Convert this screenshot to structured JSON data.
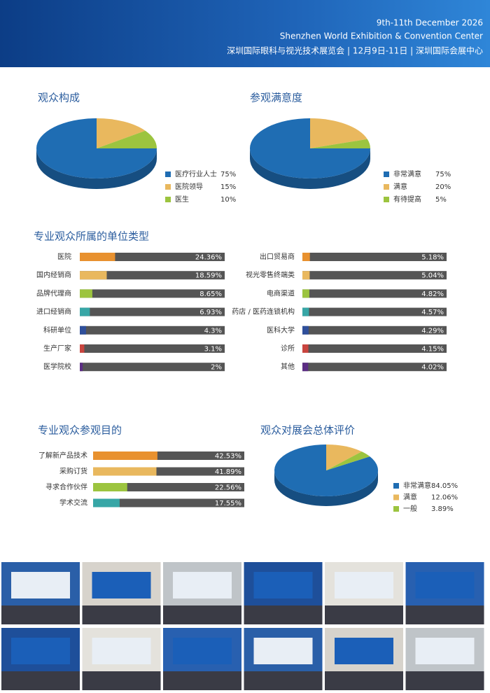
{
  "header": {
    "line1": "9th-11th December 2026",
    "line2": "Shenzhen World Exhibition & Convention Center",
    "line3": "深圳国际眼科与视光技术展览会 | 12月9日-11日 | 深圳国际会展中心"
  },
  "chart_data": [
    {
      "type": "pie",
      "title": "观众构成",
      "categories": [
        "医疗行业人士",
        "医院领导",
        "医生"
      ],
      "values": [
        75,
        15,
        10
      ],
      "value_labels": [
        "75%",
        "15%",
        "10%"
      ],
      "colors": [
        "#1f6db3",
        "#e9b85e",
        "#9cc43f"
      ]
    },
    {
      "type": "pie",
      "title": "参观满意度",
      "categories": [
        "非常满意",
        "满意",
        "有待提高"
      ],
      "values": [
        75,
        20,
        5
      ],
      "value_labels": [
        "75%",
        "20%",
        "5%"
      ],
      "colors": [
        "#1f6db3",
        "#e9b85e",
        "#9cc43f"
      ]
    },
    {
      "type": "bar",
      "title": "专业观众所属的单位类型",
      "categories": [
        "医院",
        "国内经销商",
        "品牌代理商",
        "进口经销商",
        "科研单位",
        "生产厂家",
        "医学院校",
        "出口贸易商",
        "视光零售终端类",
        "电商渠道",
        "药店 / 医药连锁机构",
        "医科大学",
        "诊所",
        "其他"
      ],
      "values": [
        24.36,
        18.59,
        8.65,
        6.93,
        4.3,
        3.1,
        2,
        5.18,
        5.04,
        4.82,
        4.57,
        4.29,
        4.15,
        4.02
      ],
      "value_labels": [
        "24.36%",
        "18.59%",
        "8.65%",
        "6.93%",
        "4.3%",
        "3.1%",
        "2%",
        "5.18%",
        "5.04%",
        "4.82%",
        "4.57%",
        "4.29%",
        "4.15%",
        "4.02%"
      ],
      "colors": [
        "#e8912f",
        "#e9b85e",
        "#9cc43f",
        "#37a6a6",
        "#2f4f9b",
        "#c9453f",
        "#5b2d83",
        "#e8912f",
        "#e9b85e",
        "#9cc43f",
        "#37a6a6",
        "#2f4f9b",
        "#c9453f",
        "#5b2d83"
      ],
      "xlim": [
        0,
        100
      ]
    },
    {
      "type": "bar",
      "title": "专业观众参观目的",
      "categories": [
        "了解新产品技术",
        "采购订货",
        "寻求合作伙伴",
        "学术交流"
      ],
      "values": [
        42.53,
        41.89,
        22.56,
        17.55
      ],
      "value_labels": [
        "42.53%",
        "41.89%",
        "22.56%",
        "17.55%"
      ],
      "colors": [
        "#e8912f",
        "#e9b85e",
        "#9cc43f",
        "#37a6a6"
      ],
      "xlim": [
        0,
        100
      ]
    },
    {
      "type": "pie",
      "title": "观众对展会总体评价",
      "categories": [
        "非常满意",
        "满意",
        "一般"
      ],
      "values": [
        84.05,
        12.06,
        3.89
      ],
      "value_labels": [
        "84.05%",
        "12.06%",
        "3.89%"
      ],
      "colors": [
        "#1f6db3",
        "#e9b85e",
        "#9cc43f"
      ]
    }
  ]
}
